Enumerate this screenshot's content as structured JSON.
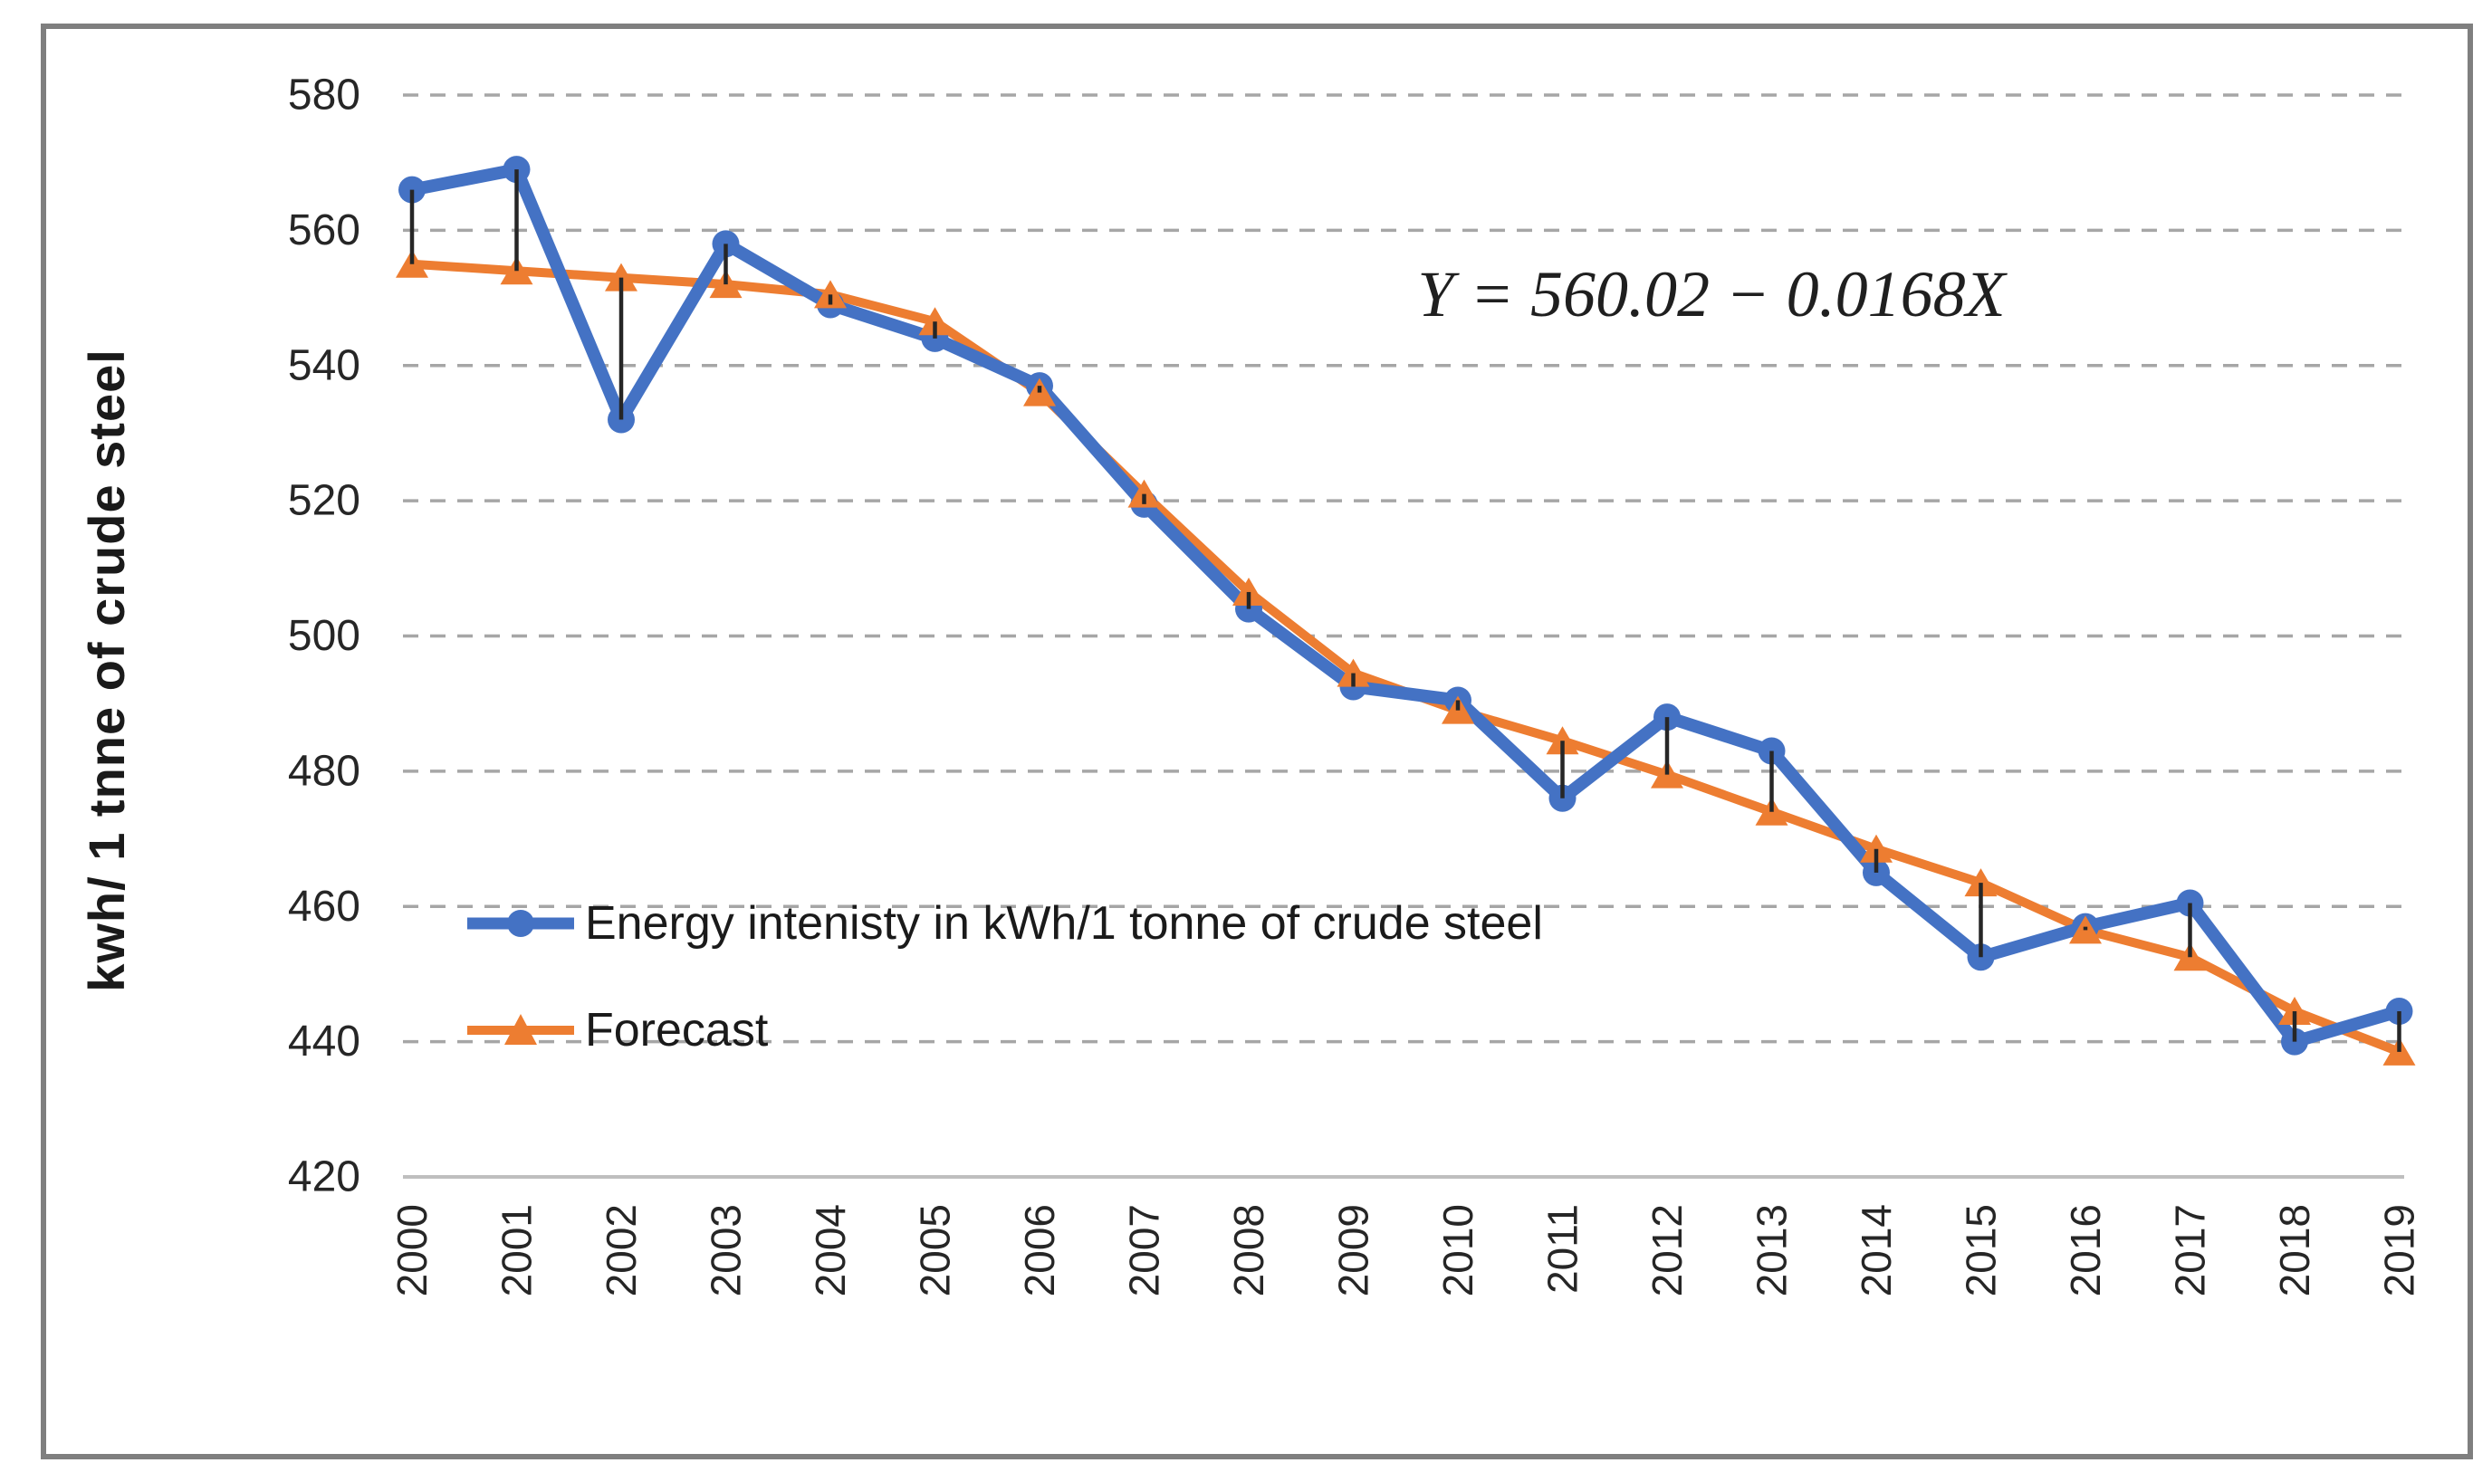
{
  "figure": {
    "border_color": "#7f7f7f",
    "background": "#ffffff"
  },
  "y_axis": {
    "title": "kwh/ 1 tnne of crude steel",
    "ticks": [
      "580",
      "560",
      "540",
      "520",
      "500",
      "480",
      "460",
      "440",
      "420"
    ]
  },
  "x_axis": {
    "labels": [
      "2000",
      "2001",
      "2002",
      "2003",
      "2004",
      "2005",
      "2006",
      "2007",
      "2008",
      "2009",
      "2010",
      "2011",
      "2012",
      "2013",
      "2014",
      "2015",
      "2016",
      "2017",
      "2018",
      "2019"
    ]
  },
  "annotation": {
    "equation": "Y = 560.02 − 0.0168X"
  },
  "legend": {
    "items": [
      {
        "label": "Energy intenisty in kWh/1 tonne of crude steel",
        "marker": "circle",
        "color": "#4472c4"
      },
      {
        "label": "Forecast",
        "marker": "triangle",
        "color": "#ed7d31"
      }
    ]
  },
  "colors": {
    "actual_series": "#4472c4",
    "forecast_series": "#ed7d31",
    "gridline": "#a6a6a6",
    "axis_line": "#bfbfbf",
    "highlow_line": "#262626",
    "tick_text": "#262626"
  },
  "chart_data": {
    "type": "line",
    "categories": [
      "2000",
      "2001",
      "2002",
      "2003",
      "2004",
      "2005",
      "2006",
      "2007",
      "2008",
      "2009",
      "2010",
      "2011",
      "2012",
      "2013",
      "2014",
      "2015",
      "2016",
      "2017",
      "2018",
      "2019"
    ],
    "series": [
      {
        "name": "Energy intenisty in kWh/1 tonne of crude steel",
        "color": "#4472c4",
        "marker": "circle",
        "values": [
          566,
          569,
          532,
          558,
          549,
          544,
          537,
          519.5,
          504,
          492.5,
          490.5,
          476,
          488,
          483,
          465,
          452.5,
          457,
          460.5,
          440,
          444.5
        ]
      },
      {
        "name": "Forecast",
        "color": "#ed7d31",
        "marker": "triangle",
        "values": [
          555,
          554,
          553,
          552,
          550.5,
          546.5,
          536,
          521,
          506.5,
          494.5,
          489,
          484.5,
          479.5,
          474,
          468.5,
          463.5,
          456.5,
          452.5,
          444.5,
          438.5
        ]
      }
    ],
    "title": "",
    "xlabel": "",
    "ylabel": "kwh/ 1 tnne of crude steel",
    "ylim": [
      420,
      580
    ],
    "ytick_step": 20,
    "grid": "horizontal-dashed",
    "legend_position": "inside-bottom-left",
    "annotations": [
      "Y = 560.02 − 0.0168X"
    ],
    "high_low_lines_between_series": true
  }
}
